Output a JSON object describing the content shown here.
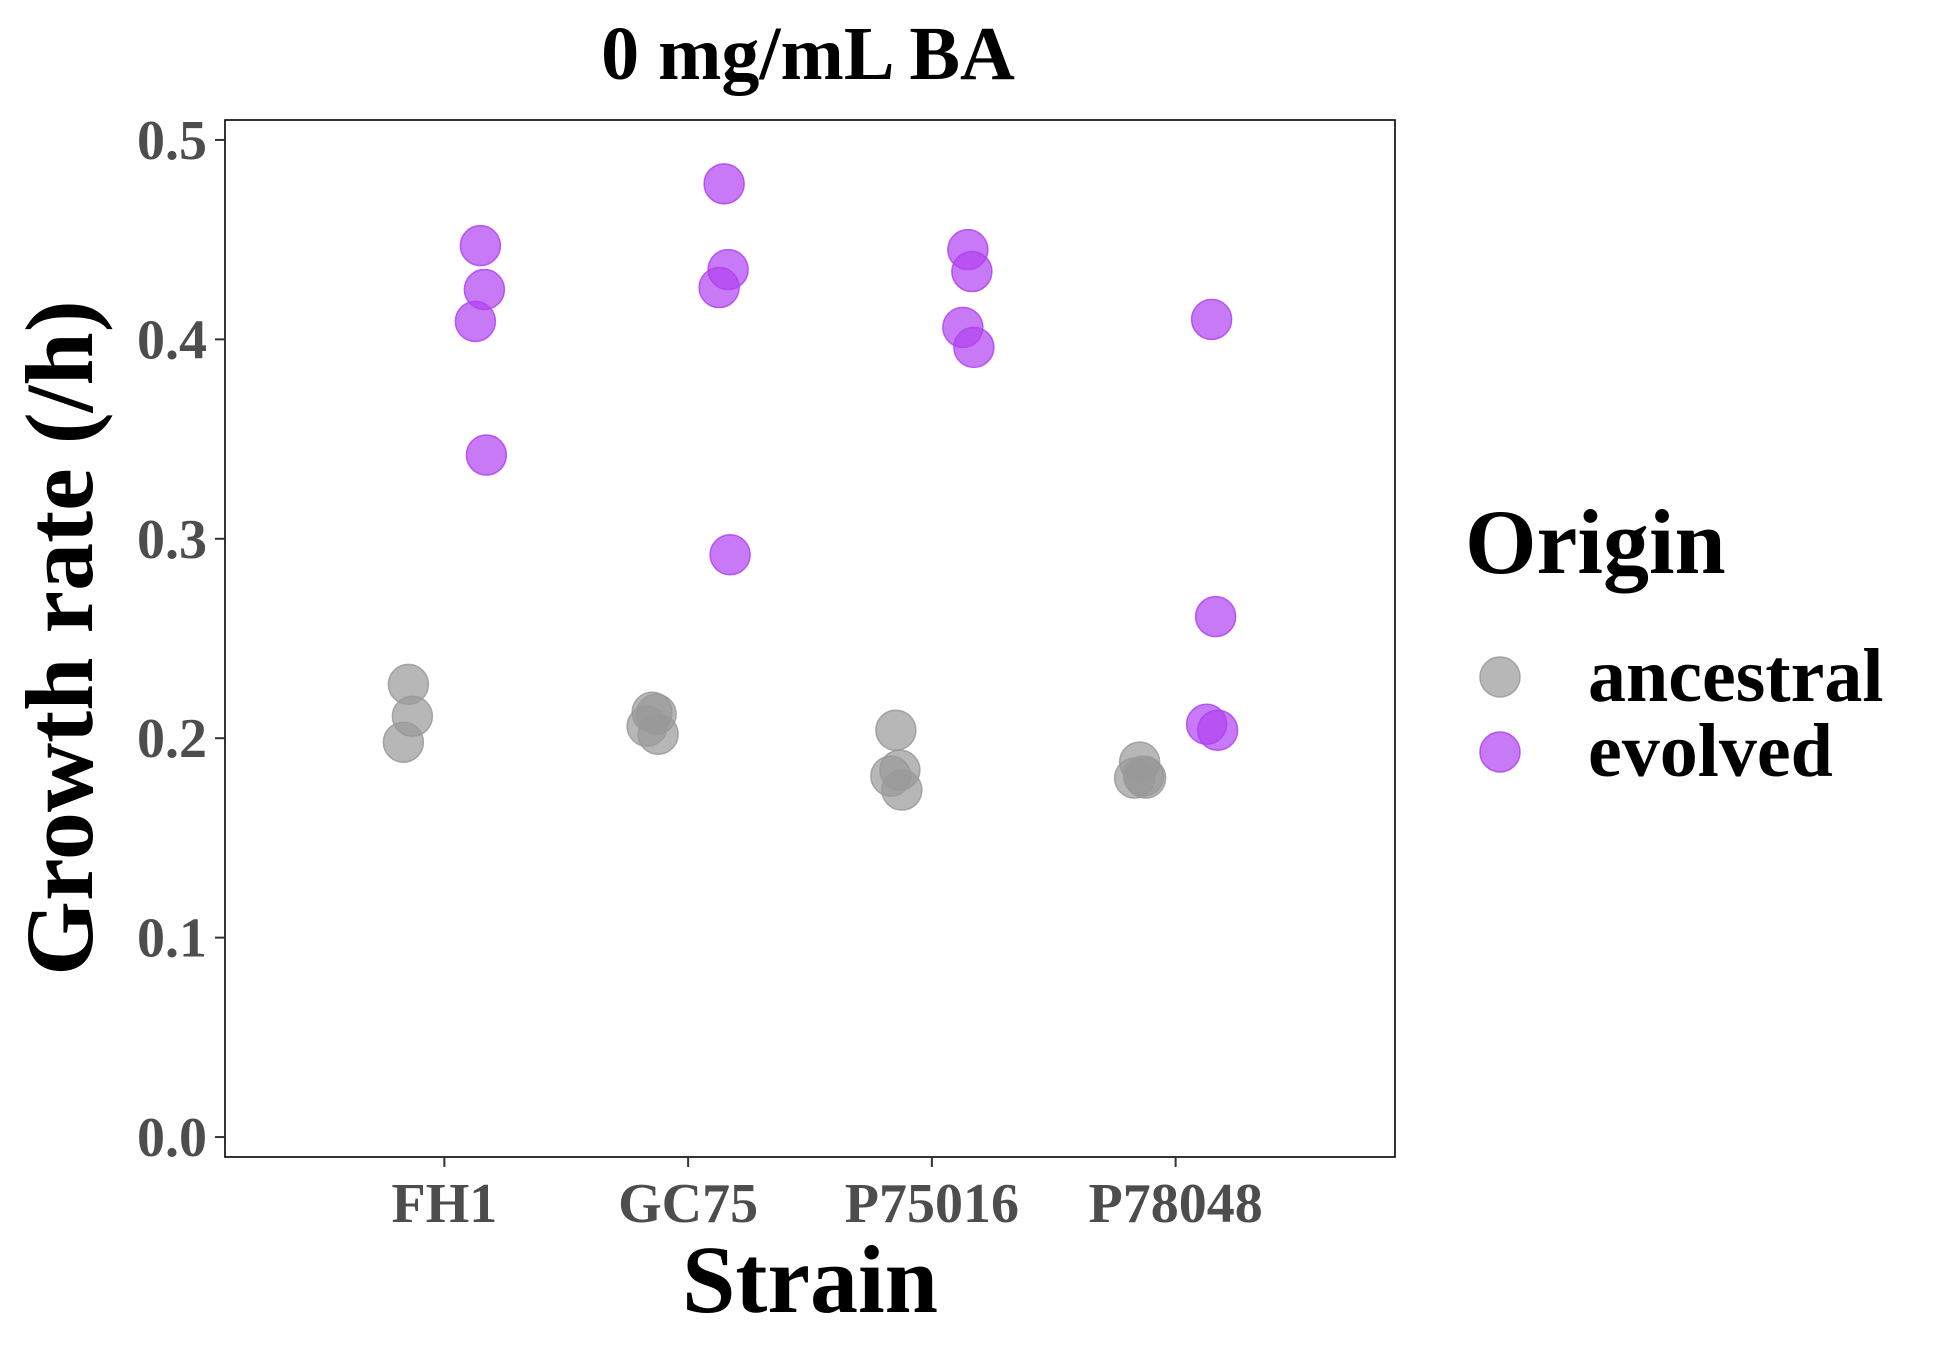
{
  "chart_data": {
    "type": "scatter",
    "title": "0 mg/mL BA",
    "xlabel": "Strain",
    "ylabel": "Growth rate (/h)",
    "categories": [
      "FH1",
      "GC75",
      "P75016",
      "P78048"
    ],
    "ylim": [
      -0.01,
      0.51
    ],
    "y_ticks": [
      "0.0",
      "0.1",
      "0.2",
      "0.3",
      "0.4",
      "0.5"
    ],
    "y_tick_values": [
      0.0,
      0.1,
      0.2,
      0.3,
      0.4,
      0.5
    ],
    "grid": false,
    "legend": {
      "title": "Origin",
      "position": "right",
      "entries": [
        {
          "label": "ancestral",
          "color": "#999999"
        },
        {
          "label": "evolved",
          "color": "#b042f2"
        }
      ]
    },
    "series": [
      {
        "name": "ancestral",
        "color": "#999999",
        "points": [
          {
            "category": "FH1",
            "y": 0.227
          },
          {
            "category": "FH1",
            "y": 0.211
          },
          {
            "category": "FH1",
            "y": 0.198
          },
          {
            "category": "GC75",
            "y": 0.213
          },
          {
            "category": "GC75",
            "y": 0.212
          },
          {
            "category": "GC75",
            "y": 0.206
          },
          {
            "category": "GC75",
            "y": 0.202
          },
          {
            "category": "P75016",
            "y": 0.204
          },
          {
            "category": "P75016",
            "y": 0.184
          },
          {
            "category": "P75016",
            "y": 0.181
          },
          {
            "category": "P75016",
            "y": 0.174
          },
          {
            "category": "P78048",
            "y": 0.188
          },
          {
            "category": "P78048",
            "y": 0.181
          },
          {
            "category": "P78048",
            "y": 0.18
          },
          {
            "category": "P78048",
            "y": 0.18
          }
        ]
      },
      {
        "name": "evolved",
        "color": "#b042f2",
        "points": [
          {
            "category": "FH1",
            "y": 0.447
          },
          {
            "category": "FH1",
            "y": 0.425
          },
          {
            "category": "FH1",
            "y": 0.409
          },
          {
            "category": "FH1",
            "y": 0.342
          },
          {
            "category": "GC75",
            "y": 0.478
          },
          {
            "category": "GC75",
            "y": 0.435
          },
          {
            "category": "GC75",
            "y": 0.426
          },
          {
            "category": "GC75",
            "y": 0.292
          },
          {
            "category": "P75016",
            "y": 0.445
          },
          {
            "category": "P75016",
            "y": 0.434
          },
          {
            "category": "P75016",
            "y": 0.406
          },
          {
            "category": "P75016",
            "y": 0.396
          },
          {
            "category": "P78048",
            "y": 0.41
          },
          {
            "category": "P78048",
            "y": 0.261
          },
          {
            "category": "P78048",
            "y": 0.207
          },
          {
            "category": "P78048",
            "y": 0.204
          }
        ]
      }
    ]
  }
}
